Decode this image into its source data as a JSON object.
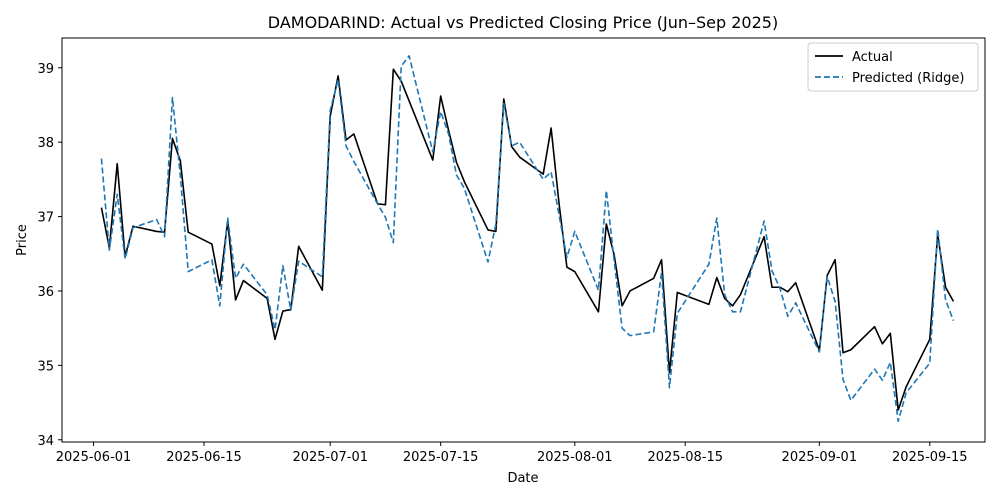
{
  "chart_data": {
    "type": "line",
    "title": "DAMODARIND: Actual vs Predicted Closing Price (Jun–Sep 2025)",
    "xlabel": "Date",
    "ylabel": "Price",
    "ylim": [
      33.97,
      39.4
    ],
    "xlim": [
      "2025-05-28",
      "2025-09-22"
    ],
    "x_ticks": [
      "2025-06-01",
      "2025-06-15",
      "2025-07-01",
      "2025-07-15",
      "2025-08-01",
      "2025-08-15",
      "2025-09-01",
      "2025-09-15"
    ],
    "y_ticks": [
      34,
      35,
      36,
      37,
      38,
      39
    ],
    "grid": false,
    "legend_position": "top-right",
    "series": [
      {
        "name": "Actual",
        "color": "#000000",
        "style": "solid",
        "points": [
          [
            "2025-06-02",
            37.12
          ],
          [
            "2025-06-03",
            36.58
          ],
          [
            "2025-06-04",
            37.71
          ],
          [
            "2025-06-05",
            36.46
          ],
          [
            "2025-06-06",
            36.87
          ],
          [
            "2025-06-09",
            36.8
          ],
          [
            "2025-06-10",
            36.79
          ],
          [
            "2025-06-11",
            38.05
          ],
          [
            "2025-06-12",
            37.75
          ],
          [
            "2025-06-13",
            36.79
          ],
          [
            "2025-06-16",
            36.63
          ],
          [
            "2025-06-17",
            36.07
          ],
          [
            "2025-06-18",
            36.94
          ],
          [
            "2025-06-19",
            35.88
          ],
          [
            "2025-06-20",
            36.14
          ],
          [
            "2025-06-23",
            35.9
          ],
          [
            "2025-06-24",
            35.35
          ],
          [
            "2025-06-25",
            35.73
          ],
          [
            "2025-06-26",
            35.75
          ],
          [
            "2025-06-27",
            36.6
          ],
          [
            "2025-06-30",
            36.01
          ],
          [
            "2025-07-01",
            38.35
          ],
          [
            "2025-07-02",
            38.89
          ],
          [
            "2025-07-03",
            38.03
          ],
          [
            "2025-07-04",
            38.11
          ],
          [
            "2025-07-07",
            37.17
          ],
          [
            "2025-07-08",
            37.16
          ],
          [
            "2025-07-09",
            38.98
          ],
          [
            "2025-07-10",
            38.82
          ],
          [
            "2025-07-14",
            37.76
          ],
          [
            "2025-07-15",
            38.62
          ],
          [
            "2025-07-16",
            38.16
          ],
          [
            "2025-07-17",
            37.73
          ],
          [
            "2025-07-18",
            37.47
          ],
          [
            "2025-07-21",
            36.82
          ],
          [
            "2025-07-22",
            36.8
          ],
          [
            "2025-07-23",
            38.58
          ],
          [
            "2025-07-24",
            37.94
          ],
          [
            "2025-07-25",
            37.8
          ],
          [
            "2025-07-28",
            37.57
          ],
          [
            "2025-07-29",
            38.19
          ],
          [
            "2025-07-30",
            37.18
          ],
          [
            "2025-07-31",
            36.32
          ],
          [
            "2025-08-01",
            36.26
          ],
          [
            "2025-08-04",
            35.72
          ],
          [
            "2025-08-05",
            36.9
          ],
          [
            "2025-08-06",
            36.48
          ],
          [
            "2025-08-07",
            35.8
          ],
          [
            "2025-08-08",
            36.0
          ],
          [
            "2025-08-11",
            36.17
          ],
          [
            "2025-08-12",
            36.42
          ],
          [
            "2025-08-13",
            34.9
          ],
          [
            "2025-08-14",
            35.98
          ],
          [
            "2025-08-18",
            35.82
          ],
          [
            "2025-08-19",
            36.18
          ],
          [
            "2025-08-20",
            35.9
          ],
          [
            "2025-08-21",
            35.8
          ],
          [
            "2025-08-22",
            35.95
          ],
          [
            "2025-08-25",
            36.73
          ],
          [
            "2025-08-26",
            36.05
          ],
          [
            "2025-08-27",
            36.05
          ],
          [
            "2025-08-28",
            35.99
          ],
          [
            "2025-08-29",
            36.11
          ],
          [
            "2025-09-01",
            35.2
          ],
          [
            "2025-09-02",
            36.21
          ],
          [
            "2025-09-03",
            36.42
          ],
          [
            "2025-09-04",
            35.17
          ],
          [
            "2025-09-05",
            35.21
          ],
          [
            "2025-09-08",
            35.52
          ],
          [
            "2025-09-09",
            35.29
          ],
          [
            "2025-09-10",
            35.43
          ],
          [
            "2025-09-11",
            34.4
          ],
          [
            "2025-09-12",
            34.71
          ],
          [
            "2025-09-15",
            35.35
          ],
          [
            "2025-09-16",
            36.76
          ],
          [
            "2025-09-17",
            36.05
          ],
          [
            "2025-09-18",
            35.86
          ]
        ]
      },
      {
        "name": "Predicted (Ridge)",
        "color": "#1f77b4",
        "style": "dashed",
        "points": [
          [
            "2025-06-02",
            37.78
          ],
          [
            "2025-06-03",
            36.55
          ],
          [
            "2025-06-04",
            37.3
          ],
          [
            "2025-06-05",
            36.43
          ],
          [
            "2025-06-06",
            36.85
          ],
          [
            "2025-06-09",
            36.96
          ],
          [
            "2025-06-10",
            36.73
          ],
          [
            "2025-06-11",
            38.6
          ],
          [
            "2025-06-12",
            37.55
          ],
          [
            "2025-06-13",
            36.26
          ],
          [
            "2025-06-16",
            36.42
          ],
          [
            "2025-06-17",
            35.8
          ],
          [
            "2025-06-18",
            36.98
          ],
          [
            "2025-06-19",
            36.17
          ],
          [
            "2025-06-20",
            36.36
          ],
          [
            "2025-06-23",
            35.95
          ],
          [
            "2025-06-24",
            35.48
          ],
          [
            "2025-06-25",
            36.34
          ],
          [
            "2025-06-26",
            35.74
          ],
          [
            "2025-06-27",
            36.4
          ],
          [
            "2025-06-30",
            36.19
          ],
          [
            "2025-07-01",
            38.43
          ],
          [
            "2025-07-02",
            38.84
          ],
          [
            "2025-07-03",
            37.95
          ],
          [
            "2025-07-04",
            37.74
          ],
          [
            "2025-07-07",
            37.17
          ],
          [
            "2025-07-08",
            36.99
          ],
          [
            "2025-07-09",
            36.65
          ],
          [
            "2025-07-10",
            39.02
          ],
          [
            "2025-07-11",
            39.16
          ],
          [
            "2025-07-14",
            37.87
          ],
          [
            "2025-07-15",
            38.41
          ],
          [
            "2025-07-16",
            38.11
          ],
          [
            "2025-07-17",
            37.56
          ],
          [
            "2025-07-18",
            37.38
          ],
          [
            "2025-07-21",
            36.39
          ],
          [
            "2025-07-22",
            36.9
          ],
          [
            "2025-07-23",
            38.52
          ],
          [
            "2025-07-24",
            37.95
          ],
          [
            "2025-07-25",
            38.0
          ],
          [
            "2025-07-28",
            37.5
          ],
          [
            "2025-07-29",
            37.6
          ],
          [
            "2025-07-31",
            36.45
          ],
          [
            "2025-08-01",
            36.8
          ],
          [
            "2025-08-04",
            36.01
          ],
          [
            "2025-08-05",
            37.35
          ],
          [
            "2025-08-06",
            36.4
          ],
          [
            "2025-08-07",
            35.5
          ],
          [
            "2025-08-08",
            35.4
          ],
          [
            "2025-08-11",
            35.45
          ],
          [
            "2025-08-12",
            36.25
          ],
          [
            "2025-08-13",
            34.7
          ],
          [
            "2025-08-14",
            35.7
          ],
          [
            "2025-08-18",
            36.36
          ],
          [
            "2025-08-19",
            36.98
          ],
          [
            "2025-08-20",
            35.95
          ],
          [
            "2025-08-21",
            35.72
          ],
          [
            "2025-08-22",
            35.72
          ],
          [
            "2025-08-25",
            36.94
          ],
          [
            "2025-08-26",
            36.27
          ],
          [
            "2025-08-27",
            36.04
          ],
          [
            "2025-08-28",
            35.66
          ],
          [
            "2025-08-29",
            35.84
          ],
          [
            "2025-09-01",
            35.18
          ],
          [
            "2025-09-02",
            36.19
          ],
          [
            "2025-09-03",
            35.86
          ],
          [
            "2025-09-04",
            34.81
          ],
          [
            "2025-09-05",
            34.53
          ],
          [
            "2025-09-08",
            34.95
          ],
          [
            "2025-09-09",
            34.8
          ],
          [
            "2025-09-10",
            35.04
          ],
          [
            "2025-09-11",
            34.25
          ],
          [
            "2025-09-12",
            34.63
          ],
          [
            "2025-09-15",
            35.03
          ],
          [
            "2025-09-16",
            36.83
          ],
          [
            "2025-09-17",
            35.88
          ],
          [
            "2025-09-18",
            35.6
          ]
        ]
      }
    ]
  }
}
